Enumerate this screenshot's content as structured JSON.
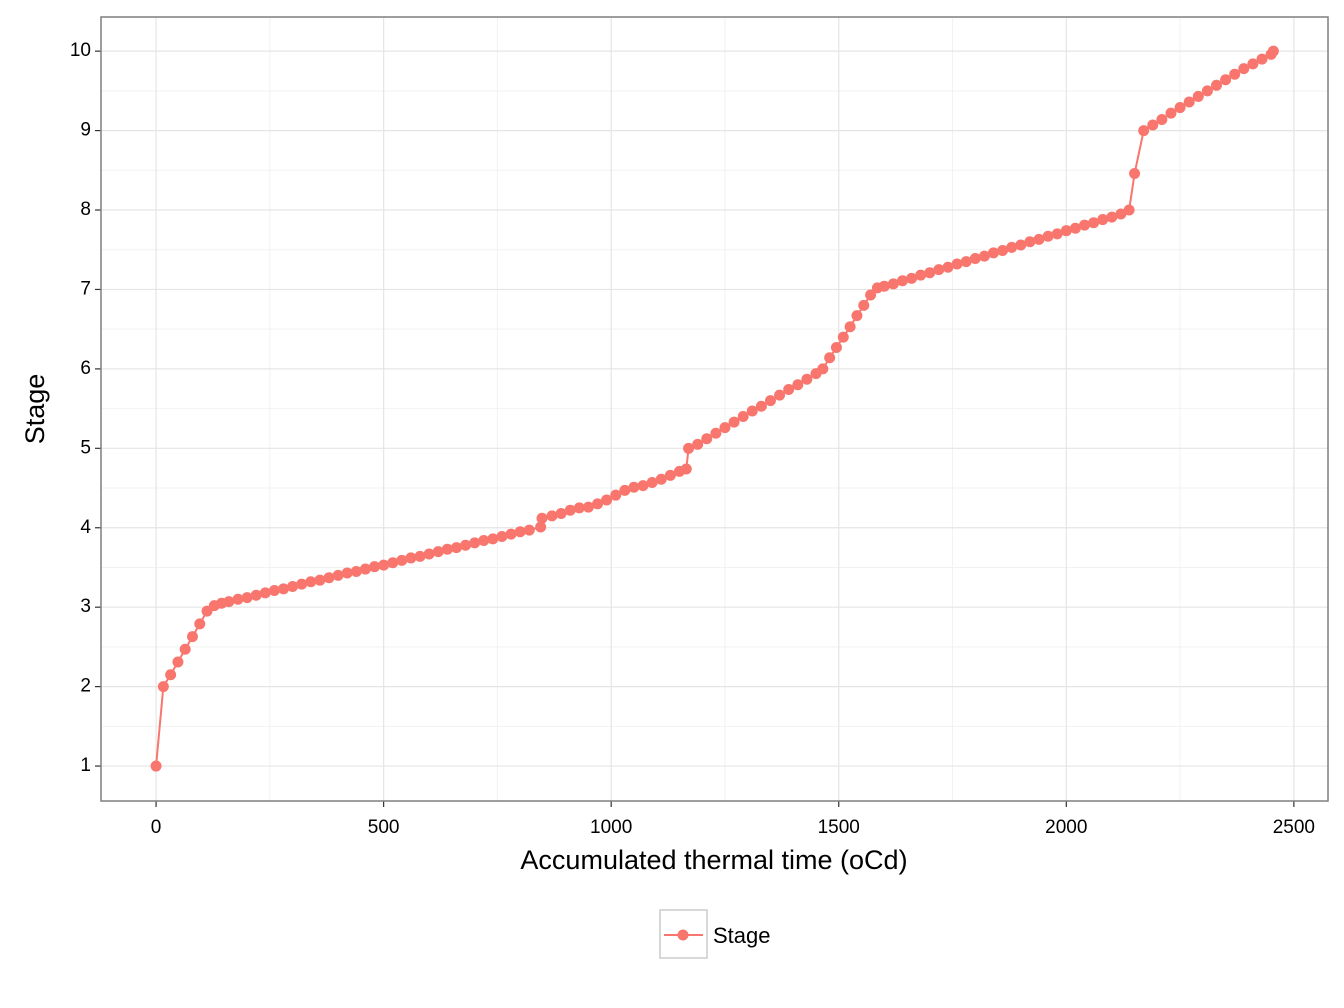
{
  "chart_data": {
    "type": "line",
    "x_label": "Accumulated thermal time (oCd)",
    "y_label": "Stage",
    "xlim": [
      -121,
      2575
    ],
    "ylim": [
      0.56,
      10.43
    ],
    "xticks": [
      0,
      500,
      1000,
      1500,
      2000,
      2500
    ],
    "yticks": [
      1,
      2,
      3,
      4,
      5,
      6,
      7,
      8,
      9,
      10
    ],
    "grid": true,
    "legend": "bottom",
    "x": [
      0,
      16,
      32,
      48,
      64,
      80,
      96,
      112,
      128,
      144,
      160,
      180,
      200,
      220,
      240,
      260,
      280,
      300,
      320,
      340,
      360,
      380,
      400,
      420,
      440,
      460,
      480,
      500,
      520,
      540,
      560,
      580,
      600,
      620,
      640,
      660,
      680,
      700,
      720,
      740,
      760,
      780,
      800,
      820,
      845,
      848,
      870,
      890,
      910,
      930,
      950,
      970,
      990,
      1010,
      1030,
      1050,
      1070,
      1090,
      1110,
      1130,
      1150,
      1165,
      1170,
      1190,
      1210,
      1230,
      1250,
      1270,
      1290,
      1310,
      1330,
      1350,
      1370,
      1390,
      1410,
      1430,
      1450,
      1465,
      1480,
      1495,
      1510,
      1525,
      1540,
      1555,
      1570,
      1585,
      1600,
      1620,
      1640,
      1660,
      1680,
      1700,
      1720,
      1740,
      1760,
      1780,
      1800,
      1820,
      1840,
      1860,
      1880,
      1900,
      1920,
      1940,
      1960,
      1980,
      2000,
      2020,
      2040,
      2060,
      2080,
      2100,
      2120,
      2138,
      2150,
      2170,
      2190,
      2210,
      2230,
      2250,
      2270,
      2290,
      2310,
      2330,
      2350,
      2370,
      2390,
      2410,
      2430,
      2450,
      2455
    ],
    "series": [
      {
        "name": "Stage",
        "color": "#F8766D",
        "values": [
          1,
          2,
          2.15,
          2.31,
          2.47,
          2.63,
          2.79,
          2.95,
          3.02,
          3.05,
          3.07,
          3.1,
          3.12,
          3.15,
          3.18,
          3.21,
          3.23,
          3.26,
          3.29,
          3.32,
          3.34,
          3.37,
          3.4,
          3.43,
          3.45,
          3.48,
          3.51,
          3.53,
          3.56,
          3.59,
          3.62,
          3.64,
          3.67,
          3.7,
          3.73,
          3.75,
          3.78,
          3.81,
          3.84,
          3.86,
          3.89,
          3.92,
          3.95,
          3.97,
          4.01,
          4.12,
          4.15,
          4.18,
          4.22,
          4.25,
          4.26,
          4.3,
          4.35,
          4.41,
          4.47,
          4.51,
          4.53,
          4.57,
          4.61,
          4.66,
          4.71,
          4.74,
          5,
          5.05,
          5.12,
          5.19,
          5.26,
          5.33,
          5.4,
          5.47,
          5.53,
          5.6,
          5.67,
          5.74,
          5.8,
          5.87,
          5.94,
          6,
          6.14,
          6.27,
          6.4,
          6.53,
          6.67,
          6.8,
          6.93,
          7.02,
          7.04,
          7.07,
          7.11,
          7.14,
          7.18,
          7.21,
          7.25,
          7.28,
          7.32,
          7.35,
          7.39,
          7.42,
          7.46,
          7.49,
          7.53,
          7.56,
          7.6,
          7.63,
          7.67,
          7.7,
          7.74,
          7.77,
          7.81,
          7.84,
          7.88,
          7.91,
          7.95,
          8,
          8.46,
          9,
          9.07,
          9.14,
          9.22,
          9.29,
          9.36,
          9.43,
          9.5,
          9.57,
          9.64,
          9.71,
          9.78,
          9.84,
          9.9,
          9.96,
          10
        ]
      }
    ]
  }
}
